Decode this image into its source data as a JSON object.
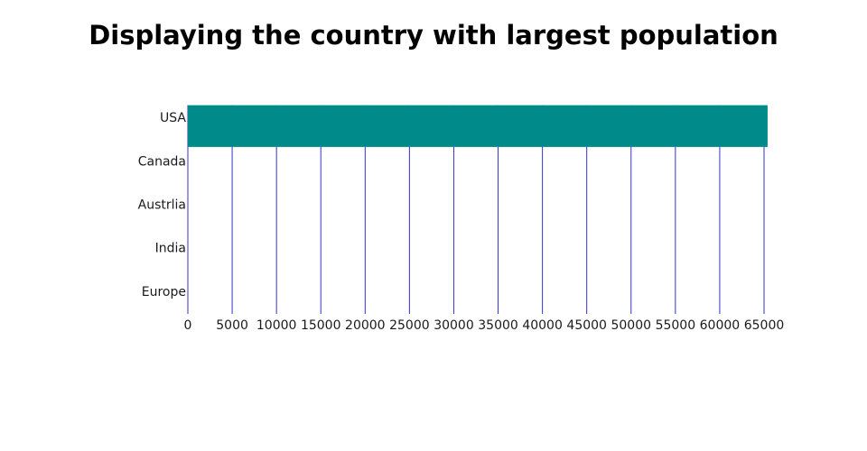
{
  "chart_data": {
    "type": "bar",
    "orientation": "horizontal",
    "title": "Displaying the country with largest population",
    "xlabel": "",
    "ylabel": "",
    "categories": [
      "USA",
      "Canada",
      "Austrlia",
      "India",
      "Europe"
    ],
    "values": [
      65400,
      0,
      0,
      0,
      0
    ],
    "xlim": [
      0,
      65000
    ],
    "xticks": [
      "0",
      "5000",
      "10000",
      "15000",
      "20000",
      "25000",
      "30000",
      "35000",
      "40000",
      "45000",
      "50000",
      "55000",
      "60000",
      "65000"
    ],
    "grid": true,
    "legend": "none",
    "colors": {
      "bar": "#008b8b",
      "grid": "#3333cc"
    }
  }
}
